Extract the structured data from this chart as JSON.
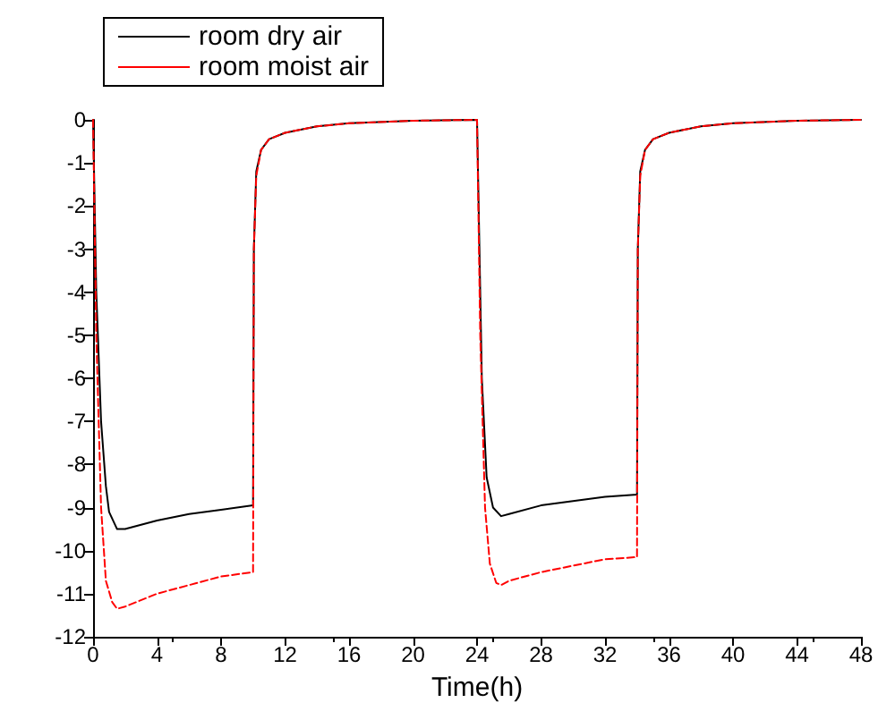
{
  "chart_data": {
    "type": "line",
    "xlabel": "Time(h)",
    "xlim": [
      0,
      48
    ],
    "xticks": [
      0,
      4,
      8,
      12,
      16,
      20,
      24,
      28,
      32,
      36,
      40,
      44,
      48
    ],
    "ylim": [
      -12,
      0
    ],
    "yticks": [
      -12,
      -11,
      -10,
      -9,
      -8,
      -7,
      -6,
      -5,
      -4,
      -3,
      -2,
      -1,
      0
    ],
    "grid": false,
    "legend": "top left",
    "marker": "none",
    "series": [
      {
        "name": "room dry air",
        "color": "#000000",
        "line_style": "solid",
        "x": [
          0,
          0.2,
          0.5,
          0.8,
          1,
          1.5,
          2,
          4,
          6,
          8,
          10,
          10.05,
          10.2,
          10.5,
          11,
          12,
          14,
          16,
          20,
          24,
          24.1,
          24.3,
          24.6,
          25,
          25.5,
          26,
          28,
          30,
          32,
          34,
          34.05,
          34.2,
          34.5,
          35,
          36,
          38,
          40,
          44,
          48
        ],
        "values": [
          0,
          -4,
          -7,
          -8.5,
          -9.1,
          -9.5,
          -9.5,
          -9.3,
          -9.15,
          -9.05,
          -8.95,
          -3,
          -1.2,
          -0.7,
          -0.45,
          -0.3,
          -0.15,
          -0.08,
          -0.02,
          0,
          -2,
          -6,
          -8.3,
          -9,
          -9.2,
          -9.15,
          -8.95,
          -8.85,
          -8.75,
          -8.7,
          -3,
          -1.2,
          -0.7,
          -0.45,
          -0.3,
          -0.15,
          -0.08,
          -0.02,
          0
        ]
      },
      {
        "name": "room moist air",
        "color": "#ff0000",
        "line_style": "dashed",
        "x": [
          0,
          0.2,
          0.5,
          0.8,
          1.2,
          1.5,
          2,
          4,
          6,
          8,
          10,
          10.05,
          10.2,
          10.5,
          11,
          12,
          14,
          16,
          20,
          24,
          24.2,
          24.5,
          24.8,
          25.2,
          25.5,
          26,
          28,
          30,
          32,
          34,
          34.05,
          34.2,
          34.5,
          35,
          36,
          38,
          40,
          44,
          48
        ],
        "values": [
          0,
          -5,
          -9,
          -10.7,
          -11.2,
          -11.35,
          -11.3,
          -11,
          -10.8,
          -10.6,
          -10.5,
          -3,
          -1.3,
          -0.7,
          -0.45,
          -0.3,
          -0.15,
          -0.08,
          -0.02,
          0,
          -5,
          -9,
          -10.3,
          -10.75,
          -10.8,
          -10.7,
          -10.5,
          -10.35,
          -10.2,
          -10.15,
          -3,
          -1.3,
          -0.7,
          -0.45,
          -0.3,
          -0.15,
          -0.08,
          -0.02,
          0
        ]
      }
    ]
  }
}
